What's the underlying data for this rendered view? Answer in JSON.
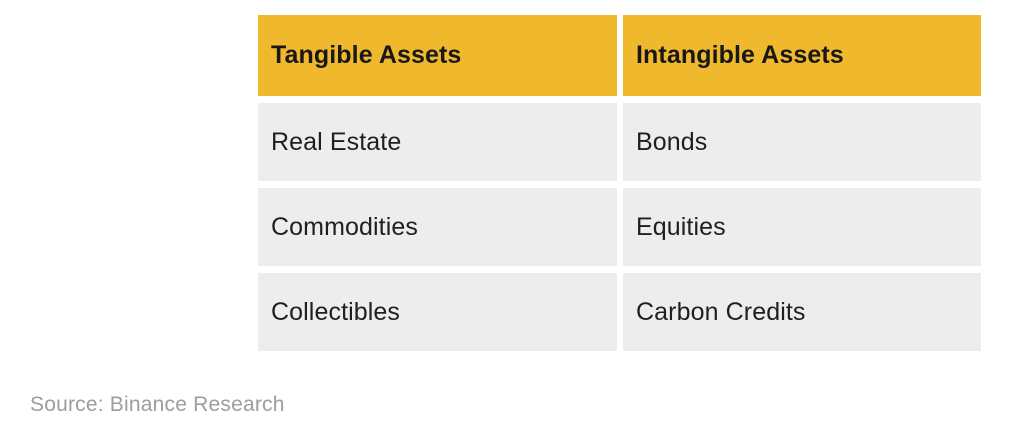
{
  "chart_data": {
    "type": "table",
    "title": "",
    "columns": [
      "Tangible Assets",
      "Intangible Assets"
    ],
    "rows": [
      [
        "Real Estate",
        "Bonds"
      ],
      [
        "Commodities",
        "Equities"
      ],
      [
        "Collectibles",
        "Carbon Credits"
      ]
    ],
    "source": "Source: Binance Research",
    "layout": {
      "legend": "none",
      "grid": "off",
      "header_style": "filled-accent",
      "row_style": "filled-light"
    },
    "colors": {
      "header_bg": "#F0B92D",
      "row_bg": "#EDEDED",
      "header_text": "#181818",
      "body_text": "#1f1f1f",
      "source_text": "#9D9DA0",
      "page_bg": "#ffffff"
    }
  },
  "table": {
    "headers": [
      "Tangible Assets",
      "Intangible Assets"
    ],
    "rows": [
      [
        "Real Estate",
        "Bonds"
      ],
      [
        "Commodities",
        "Equities"
      ],
      [
        "Collectibles",
        "Carbon Credits"
      ]
    ]
  },
  "footer": {
    "source_label": "Source: Binance Research"
  }
}
